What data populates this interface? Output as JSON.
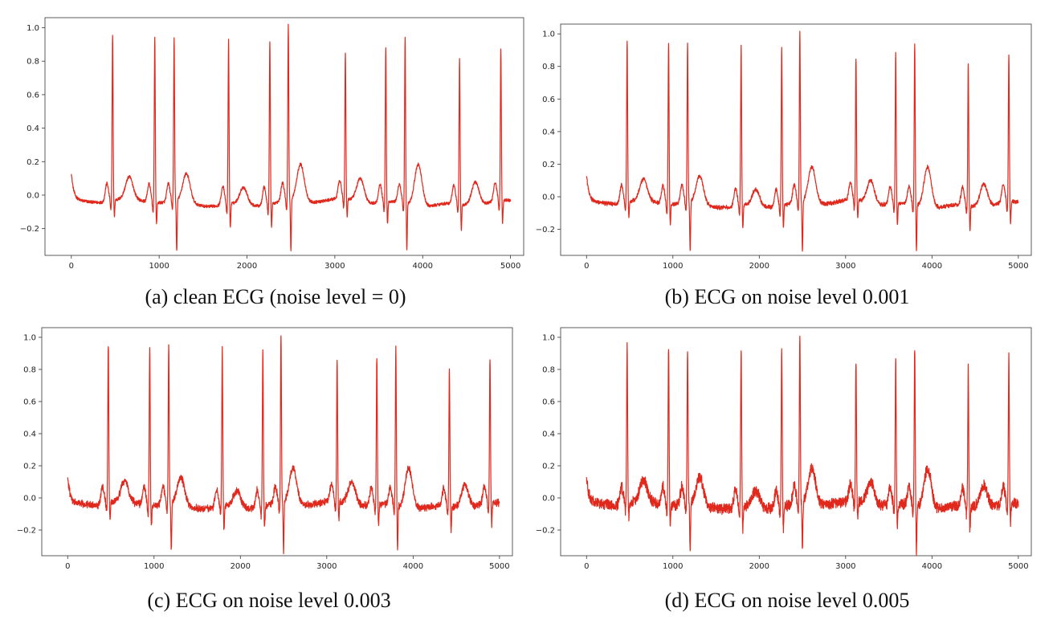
{
  "chart_data": [
    {
      "type": "line",
      "caption": "(a) clean ECG (noise level = 0)",
      "noise_level": 0,
      "xlim": [
        -300,
        5150
      ],
      "ylim": [
        -0.36,
        1.06
      ],
      "xticks": [
        0,
        1000,
        2000,
        3000,
        4000,
        5000
      ],
      "yticks": [
        -0.2,
        0.0,
        0.2,
        0.4,
        0.6,
        0.8,
        1.0
      ],
      "ytick_labels": [
        "−0.2",
        "0.0",
        "0.2",
        "0.4",
        "0.6",
        "0.8",
        "1.0"
      ],
      "r_peaks": [
        {
          "x": 470,
          "y": 0.95
        },
        {
          "x": 950,
          "y": 0.95
        },
        {
          "x": 1170,
          "y": 0.93
        },
        {
          "x": 1790,
          "y": 0.93
        },
        {
          "x": 2260,
          "y": 0.93
        },
        {
          "x": 2470,
          "y": 1.0
        },
        {
          "x": 3120,
          "y": 0.83
        },
        {
          "x": 3580,
          "y": 0.88
        },
        {
          "x": 3800,
          "y": 0.94
        },
        {
          "x": 4420,
          "y": 0.82
        },
        {
          "x": 4890,
          "y": 0.86
        }
      ],
      "s_troughs": [
        {
          "x": 490,
          "y": -0.12
        },
        {
          "x": 970,
          "y": -0.15
        },
        {
          "x": 1200,
          "y": -0.33
        },
        {
          "x": 1810,
          "y": -0.17
        },
        {
          "x": 2280,
          "y": -0.16
        },
        {
          "x": 2500,
          "y": -0.33
        },
        {
          "x": 3140,
          "y": -0.13
        },
        {
          "x": 3600,
          "y": -0.16
        },
        {
          "x": 3820,
          "y": -0.3
        },
        {
          "x": 4440,
          "y": -0.18
        },
        {
          "x": 4910,
          "y": -0.16
        }
      ],
      "t_waves": [
        {
          "x": 660,
          "y": 0.11
        },
        {
          "x": 1310,
          "y": 0.15
        },
        {
          "x": 1960,
          "y": 0.08
        },
        {
          "x": 2610,
          "y": 0.2
        },
        {
          "x": 3290,
          "y": 0.12
        },
        {
          "x": 3950,
          "y": 0.23
        },
        {
          "x": 4600,
          "y": 0.12
        }
      ]
    },
    {
      "type": "line",
      "caption": "(b) ECG on noise level 0.001",
      "noise_level": 0.001,
      "xlim": [
        -300,
        5150
      ],
      "ylim": [
        -0.36,
        1.06
      ],
      "xticks": [
        0,
        1000,
        2000,
        3000,
        4000,
        5000
      ],
      "yticks": [
        -0.2,
        0.0,
        0.2,
        0.4,
        0.6,
        0.8,
        1.0
      ],
      "ytick_labels": [
        "−0.2",
        "0.0",
        "0.2",
        "0.4",
        "0.6",
        "0.8",
        "1.0"
      ],
      "r_peaks": [
        {
          "x": 470,
          "y": 0.95
        },
        {
          "x": 950,
          "y": 0.95
        },
        {
          "x": 1170,
          "y": 0.93
        },
        {
          "x": 1790,
          "y": 0.93
        },
        {
          "x": 2260,
          "y": 0.93
        },
        {
          "x": 2470,
          "y": 1.0
        },
        {
          "x": 3120,
          "y": 0.83
        },
        {
          "x": 3580,
          "y": 0.88
        },
        {
          "x": 3800,
          "y": 0.94
        },
        {
          "x": 4420,
          "y": 0.82
        },
        {
          "x": 4890,
          "y": 0.86
        }
      ],
      "s_troughs": [
        {
          "x": 490,
          "y": -0.12
        },
        {
          "x": 970,
          "y": -0.15
        },
        {
          "x": 1200,
          "y": -0.33
        },
        {
          "x": 1810,
          "y": -0.17
        },
        {
          "x": 2280,
          "y": -0.16
        },
        {
          "x": 2500,
          "y": -0.33
        },
        {
          "x": 3140,
          "y": -0.13
        },
        {
          "x": 3600,
          "y": -0.16
        },
        {
          "x": 3820,
          "y": -0.3
        },
        {
          "x": 4440,
          "y": -0.18
        },
        {
          "x": 4910,
          "y": -0.16
        }
      ],
      "t_waves": [
        {
          "x": 660,
          "y": 0.11
        },
        {
          "x": 1310,
          "y": 0.15
        },
        {
          "x": 1960,
          "y": 0.08
        },
        {
          "x": 2610,
          "y": 0.2
        },
        {
          "x": 3290,
          "y": 0.12
        },
        {
          "x": 3950,
          "y": 0.23
        },
        {
          "x": 4600,
          "y": 0.12
        }
      ]
    },
    {
      "type": "line",
      "caption": "(c) ECG on noise level 0.003",
      "noise_level": 0.003,
      "xlim": [
        -300,
        5150
      ],
      "ylim": [
        -0.36,
        1.06
      ],
      "xticks": [
        0,
        1000,
        2000,
        3000,
        4000,
        5000
      ],
      "yticks": [
        -0.2,
        0.0,
        0.2,
        0.4,
        0.6,
        0.8,
        1.0
      ],
      "ytick_labels": [
        "−0.2",
        "0.0",
        "0.2",
        "0.4",
        "0.6",
        "0.8",
        "1.0"
      ],
      "r_peaks": [
        {
          "x": 470,
          "y": 0.95
        },
        {
          "x": 950,
          "y": 0.95
        },
        {
          "x": 1170,
          "y": 0.93
        },
        {
          "x": 1790,
          "y": 0.93
        },
        {
          "x": 2260,
          "y": 0.93
        },
        {
          "x": 2470,
          "y": 1.0
        },
        {
          "x": 3120,
          "y": 0.83
        },
        {
          "x": 3580,
          "y": 0.88
        },
        {
          "x": 3800,
          "y": 0.94
        },
        {
          "x": 4420,
          "y": 0.82
        },
        {
          "x": 4890,
          "y": 0.86
        }
      ],
      "s_troughs": [
        {
          "x": 490,
          "y": -0.12
        },
        {
          "x": 970,
          "y": -0.15
        },
        {
          "x": 1200,
          "y": -0.33
        },
        {
          "x": 1810,
          "y": -0.17
        },
        {
          "x": 2280,
          "y": -0.16
        },
        {
          "x": 2500,
          "y": -0.33
        },
        {
          "x": 3140,
          "y": -0.13
        },
        {
          "x": 3600,
          "y": -0.16
        },
        {
          "x": 3820,
          "y": -0.3
        },
        {
          "x": 4440,
          "y": -0.18
        },
        {
          "x": 4910,
          "y": -0.16
        }
      ],
      "t_waves": [
        {
          "x": 660,
          "y": 0.11
        },
        {
          "x": 1310,
          "y": 0.15
        },
        {
          "x": 1960,
          "y": 0.08
        },
        {
          "x": 2610,
          "y": 0.2
        },
        {
          "x": 3290,
          "y": 0.12
        },
        {
          "x": 3950,
          "y": 0.23
        },
        {
          "x": 4600,
          "y": 0.12
        }
      ]
    },
    {
      "type": "line",
      "caption": "(d) ECG on noise level 0.005",
      "noise_level": 0.005,
      "xlim": [
        -300,
        5150
      ],
      "ylim": [
        -0.36,
        1.06
      ],
      "xticks": [
        0,
        1000,
        2000,
        3000,
        4000,
        5000
      ],
      "yticks": [
        -0.2,
        0.0,
        0.2,
        0.4,
        0.6,
        0.8,
        1.0
      ],
      "ytick_labels": [
        "−0.2",
        "0.0",
        "0.2",
        "0.4",
        "0.6",
        "0.8",
        "1.0"
      ],
      "r_peaks": [
        {
          "x": 470,
          "y": 0.95
        },
        {
          "x": 950,
          "y": 0.95
        },
        {
          "x": 1170,
          "y": 0.93
        },
        {
          "x": 1790,
          "y": 0.93
        },
        {
          "x": 2260,
          "y": 0.93
        },
        {
          "x": 2470,
          "y": 1.0
        },
        {
          "x": 3120,
          "y": 0.83
        },
        {
          "x": 3580,
          "y": 0.88
        },
        {
          "x": 3800,
          "y": 0.94
        },
        {
          "x": 4420,
          "y": 0.82
        },
        {
          "x": 4890,
          "y": 0.86
        }
      ],
      "s_troughs": [
        {
          "x": 490,
          "y": -0.12
        },
        {
          "x": 970,
          "y": -0.15
        },
        {
          "x": 1200,
          "y": -0.33
        },
        {
          "x": 1810,
          "y": -0.17
        },
        {
          "x": 2280,
          "y": -0.16
        },
        {
          "x": 2500,
          "y": -0.33
        },
        {
          "x": 3140,
          "y": -0.13
        },
        {
          "x": 3600,
          "y": -0.16
        },
        {
          "x": 3820,
          "y": -0.3
        },
        {
          "x": 4440,
          "y": -0.18
        },
        {
          "x": 4910,
          "y": -0.16
        }
      ],
      "t_waves": [
        {
          "x": 660,
          "y": 0.11
        },
        {
          "x": 1310,
          "y": 0.15
        },
        {
          "x": 1960,
          "y": 0.08
        },
        {
          "x": 2610,
          "y": 0.2
        },
        {
          "x": 3290,
          "y": 0.12
        },
        {
          "x": 3950,
          "y": 0.23
        },
        {
          "x": 4600,
          "y": 0.12
        }
      ]
    }
  ],
  "style": {
    "trace_color": "#e0281d",
    "axis_color": "#333333"
  }
}
